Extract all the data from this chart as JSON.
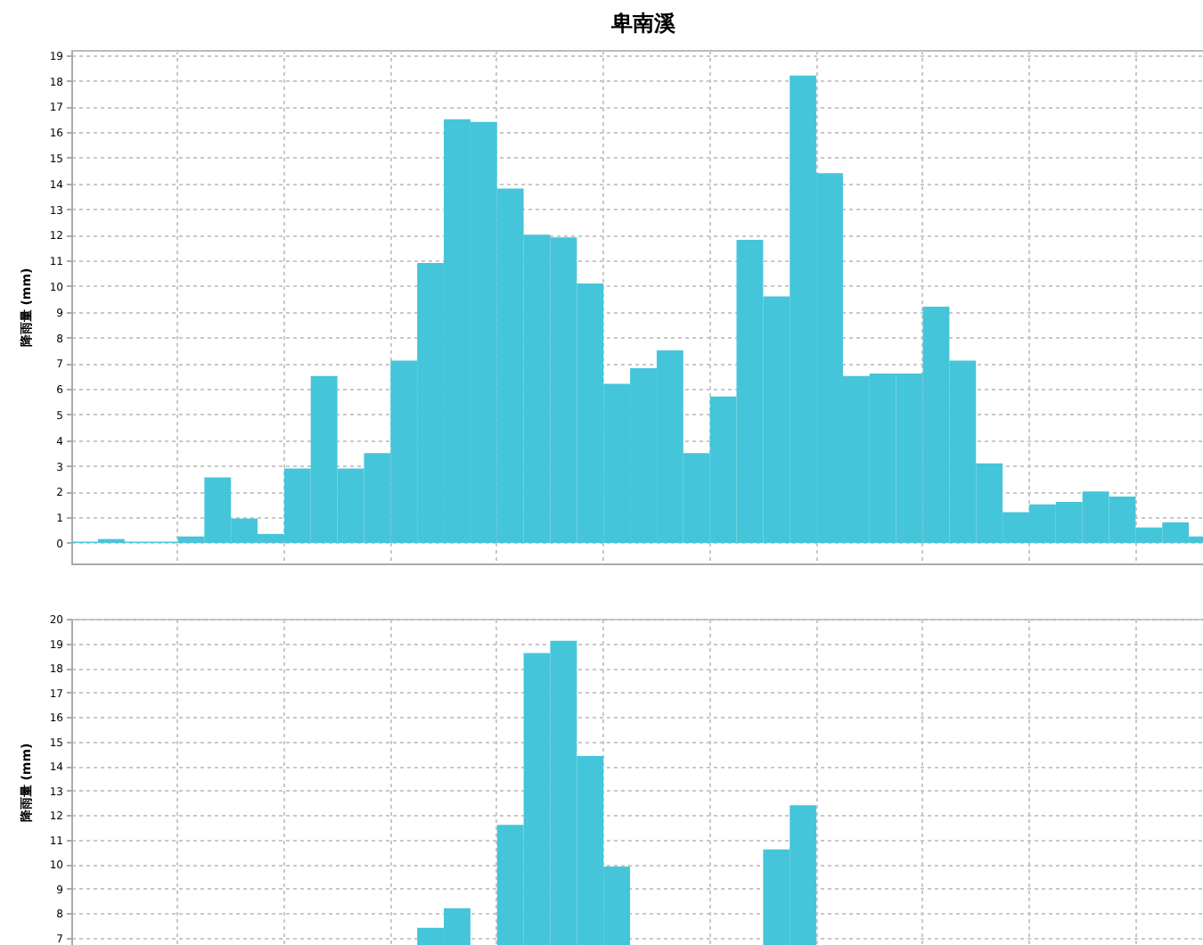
{
  "chart_data": [
    {
      "type": "bar",
      "title": "卑南溪",
      "ylabel": "降雨量 (mm)",
      "categories": [
        null,
        null,
        null,
        null,
        null,
        null,
        null,
        null,
        null,
        null,
        null,
        null,
        null,
        null,
        null,
        null,
        null,
        null,
        null,
        null,
        null,
        null,
        null,
        null,
        null,
        null,
        null,
        null,
        null,
        null,
        null,
        null,
        null,
        null,
        null,
        null,
        null,
        null,
        null,
        null,
        null,
        null,
        null
      ],
      "series": [
        {
          "color": "#45c5d9",
          "values": [
            0.05,
            0.15,
            0.05,
            0.05,
            0.25,
            2.55,
            0.95,
            0.35,
            2.9,
            6.5,
            2.9,
            3.5,
            7.1,
            10.9,
            16.5,
            16.4,
            13.8,
            12.0,
            11.9,
            10.1,
            6.2,
            6.8,
            7.5,
            3.5,
            5.7,
            11.8,
            9.6,
            18.2,
            14.4,
            6.5,
            6.6,
            6.6,
            9.2,
            7.1,
            3.1,
            1.2,
            1.5,
            1.6,
            2.0,
            1.8,
            0.6,
            0.8,
            0.25
          ]
        }
      ],
      "ylim": [
        -0.8,
        19.2
      ],
      "yticks": [
        0,
        1,
        2,
        3,
        4,
        5,
        6,
        7,
        8,
        9,
        10,
        11,
        12,
        13,
        14,
        15,
        16,
        17,
        18,
        19
      ],
      "grid": true,
      "tick_labels": "y"
    },
    {
      "type": "bar",
      "ylabel": "降雨量 (mm)",
      "categories": [
        null,
        null,
        null,
        null,
        null,
        null,
        null,
        null,
        null,
        null,
        null,
        null,
        null,
        null,
        null,
        null,
        null,
        null,
        null,
        null,
        null,
        null,
        null,
        null,
        null,
        null,
        null,
        null,
        null,
        null,
        null,
        null,
        null,
        null,
        null,
        null,
        null,
        null,
        null,
        null,
        null,
        null,
        null
      ],
      "series": [
        {
          "color": "#45c5d9",
          "values": [
            null,
            null,
            null,
            null,
            null,
            null,
            null,
            null,
            null,
            null,
            null,
            null,
            null,
            7.4,
            8.2,
            null,
            11.6,
            18.6,
            19.1,
            14.4,
            9.9,
            null,
            null,
            null,
            null,
            null,
            10.6,
            12.4,
            null,
            null,
            null,
            null,
            null,
            null,
            null,
            null,
            null,
            null,
            null,
            null,
            null,
            null,
            null
          ]
        }
      ],
      "ylim": [
        6.7,
        20
      ],
      "yticks": [
        7,
        8,
        9,
        10,
        11,
        12,
        13,
        14,
        15,
        16,
        17,
        18,
        19,
        20
      ],
      "grid": true,
      "tick_labels": "y"
    }
  ]
}
